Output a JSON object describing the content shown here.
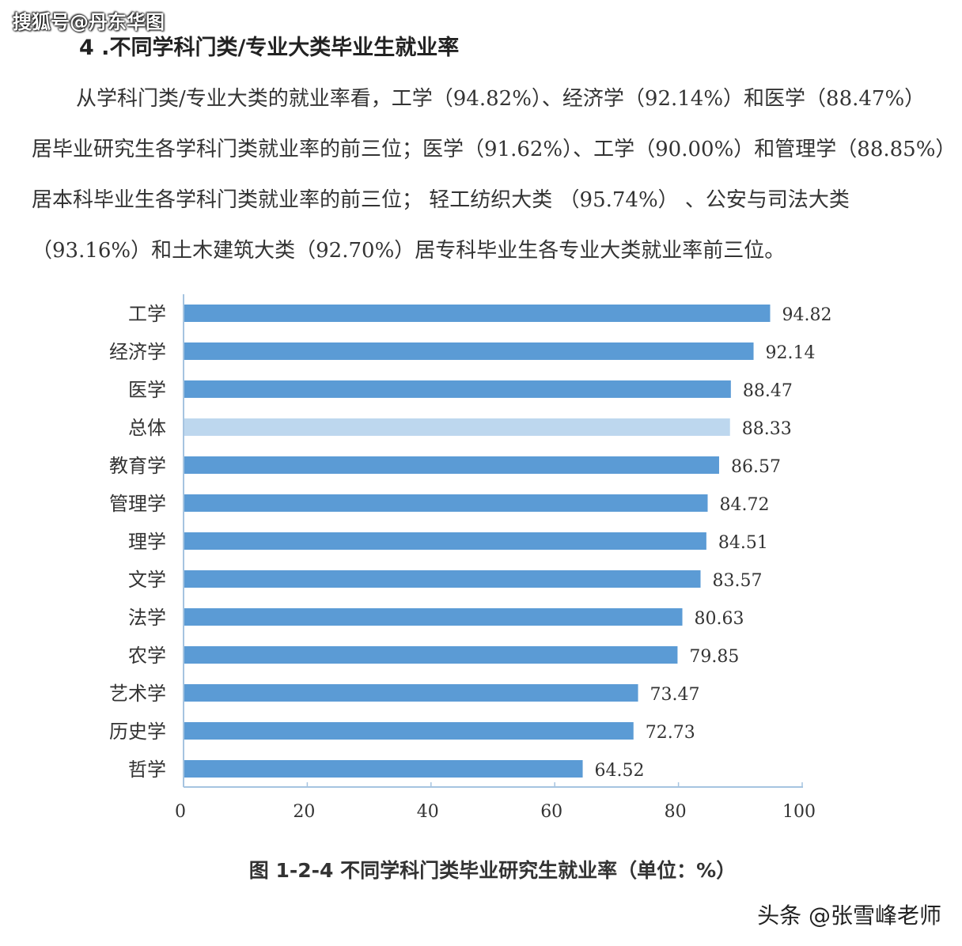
{
  "watermarks": {
    "top": "搜狐号@丹东华图",
    "bottom": "头条 @张雪峰老师"
  },
  "article": {
    "section_title": "4 .不同学科门类/专业大类毕业生就业率",
    "lines": [
      "从学科门类/专业大类的就业率看，工学（94.82%）、经济学（92.14%）和医学（88.47%）",
      "居毕业研究生各学科门类就业率的前三位；医学（91.62%）、工学（90.00%）和管理学（88.85%）",
      "居本科毕业生各学科门类就业率的前三位； 轻工纺织大类 （95.74%） 、公安与司法大类",
      "（93.16%）和土木建筑大类（92.70%）居专科毕业生各专业大类就业率前三位。"
    ]
  },
  "colors": {
    "bar": "#5b9bd5",
    "highlight_bar": "#bdd7ee",
    "axis": "#a6c4e0",
    "text": "#333333"
  },
  "chart_data": {
    "type": "bar",
    "orientation": "horizontal",
    "categories": [
      "工学",
      "经济学",
      "医学",
      "总体",
      "教育学",
      "管理学",
      "理学",
      "文学",
      "法学",
      "农学",
      "艺术学",
      "历史学",
      "哲学"
    ],
    "values": [
      94.82,
      92.14,
      88.47,
      88.33,
      86.57,
      84.72,
      84.51,
      83.57,
      80.63,
      79.85,
      73.47,
      72.73,
      64.52
    ],
    "value_labels": [
      "94.82",
      "92.14",
      "88.47",
      "88.33",
      "86.57",
      "84.72",
      "84.51",
      "83.57",
      "80.63",
      "79.85",
      "73.47",
      "72.73",
      "64.52"
    ],
    "highlight_category": "总体",
    "xlim": [
      0,
      100
    ],
    "x_ticks": [
      0,
      20,
      40,
      60,
      80,
      100
    ],
    "x_tick_labels": [
      "0",
      "20",
      "40",
      "60",
      "80",
      "100"
    ],
    "grid": false,
    "legend": "none",
    "caption": "图 1-2-4 不同学科门类毕业研究生就业率（单位：%）"
  }
}
